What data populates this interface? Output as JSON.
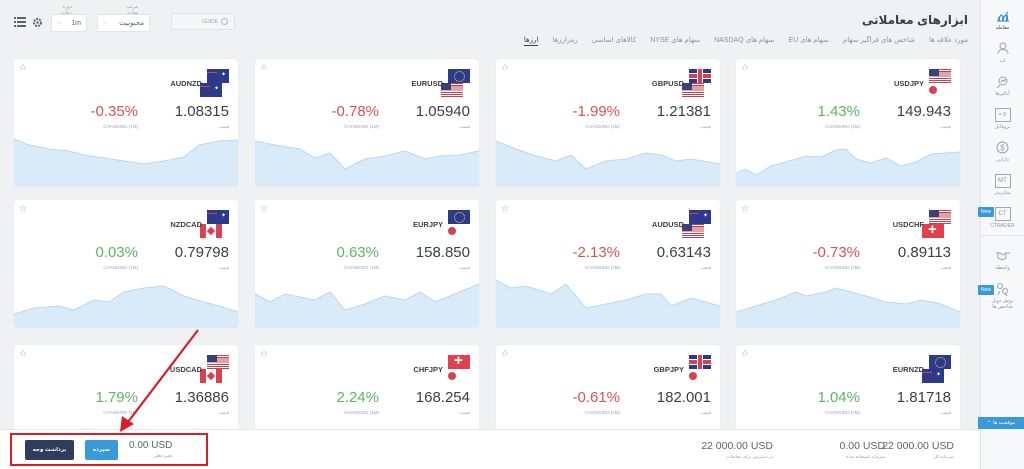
{
  "header": {
    "title": "ابزارهای معاملاتی",
    "tabs": [
      "ارزها",
      "رمزارزها",
      "کالاهای اساسی",
      "سهام های NYSE",
      "سهام های NASDAQ",
      "سهام های EU",
      "شاخص های فراگیر سهام",
      "مورد علاقه ها"
    ],
    "active_tab": 0
  },
  "controls": {
    "sort_label": "مرتب سازی",
    "sort_value": "محبوبیت",
    "timeframe_label": "دوره زمانی",
    "timeframe_value": "1m",
    "guide_label": "GUIDE",
    "settings_icon": "gear-icon",
    "list_icon": "list-icon"
  },
  "sidebar": {
    "items": [
      {
        "label": "معامله",
        "icon": "chart-icon",
        "active": true
      },
      {
        "label": "اپ",
        "icon": "user-icon"
      },
      {
        "label": "آنالیزها",
        "icon": "analysis-icon"
      },
      {
        "label": "پروفایل",
        "icon": "profile-card-icon"
      },
      {
        "label": "دارایی",
        "icon": "dollar-icon"
      },
      {
        "label": "متاتریدر",
        "icon": "mt-icon",
        "box": "MT"
      },
      {
        "label": "CTRADER",
        "icon": "ct-icon",
        "box": "CT",
        "badge": "New"
      },
      {
        "label": "واسطه",
        "icon": "handshake-icon"
      },
      {
        "label": "روش دوبل شاخص ها",
        "icon": "copy-trade-icon",
        "badge": "New"
      }
    ]
  },
  "cards": [
    {
      "symbol": "USDJPY",
      "flags": [
        "us",
        "jp"
      ],
      "price": "149.943",
      "price_label": "قیمت",
      "change": "1.43%",
      "dir": "up",
      "change_label": "CHANGING (1M)"
    },
    {
      "symbol": "GBPUSD",
      "flags": [
        "gb",
        "us"
      ],
      "price": "1.21381",
      "price_label": "قیمت",
      "change": "-1.99%",
      "dir": "down",
      "change_label": "CHANGING (1M)"
    },
    {
      "symbol": "EURUSD",
      "flags": [
        "eu",
        "us"
      ],
      "price": "1.05940",
      "price_label": "قیمت",
      "change": "-0.78%",
      "dir": "down",
      "change_label": "CHANGING (1M)"
    },
    {
      "symbol": "AUDNZD",
      "flags": [
        "au",
        "nz"
      ],
      "price": "1.08315",
      "price_label": "قیمت",
      "change": "-0.35%",
      "dir": "down",
      "change_label": "CHANGING (1M)"
    },
    {
      "symbol": "USDCHF",
      "flags": [
        "us",
        "ch"
      ],
      "price": "0.89113",
      "price_label": "قیمت",
      "change": "-0.73%",
      "dir": "down",
      "change_label": "CHANGING (1M)"
    },
    {
      "symbol": "AUDUSD",
      "flags": [
        "au",
        "us"
      ],
      "price": "0.63143",
      "price_label": "قیمت",
      "change": "-2.13%",
      "dir": "down",
      "change_label": "CHANGING (1M)"
    },
    {
      "symbol": "EURJPY",
      "flags": [
        "eu",
        "jp"
      ],
      "price": "158.850",
      "price_label": "قیمت",
      "change": "0.63%",
      "dir": "up",
      "change_label": "CHANGING (1M)"
    },
    {
      "symbol": "NZDCAD",
      "flags": [
        "nz",
        "ca"
      ],
      "price": "0.79798",
      "price_label": "قیمت",
      "change": "0.03%",
      "dir": "up",
      "change_label": "CHANGING (1M)"
    },
    {
      "symbol": "EURNZD",
      "flags": [
        "eu",
        "nz"
      ],
      "price": "1.81718",
      "price_label": "قیمت",
      "change": "1.04%",
      "dir": "up",
      "change_label": "CHANGING (1M)"
    },
    {
      "symbol": "GBPJPY",
      "flags": [
        "gb",
        "jp"
      ],
      "price": "182.001",
      "price_label": "قیمت",
      "change": "-0.61%",
      "dir": "down",
      "change_label": "CHANGING (1M)"
    },
    {
      "symbol": "CHFJPY",
      "flags": [
        "ch",
        "jp"
      ],
      "price": "168.254",
      "price_label": "قیمت",
      "change": "2.24%",
      "dir": "up",
      "change_label": "CHANGING (1M)"
    },
    {
      "symbol": "USDCAD",
      "flags": [
        "us",
        "ca"
      ],
      "price": "1.36886",
      "price_label": "قیمت",
      "change": "1.79%",
      "dir": "up",
      "change_label": "CHANGING (1M)"
    }
  ],
  "footer": {
    "positions_tab": "موقعیت ها",
    "stats": [
      {
        "value": "22 000.00 USD",
        "label": "سرمایه کل"
      },
      {
        "value": "0.00 USD",
        "label": "سرمایه استفاده شده"
      },
      {
        "value": "22 000.00 USD",
        "label": "در دسترس برای معاملات"
      }
    ],
    "balance_value": "0.00 USD",
    "balance_label": "تغییر فعلی",
    "deposit_label": "سپرده",
    "withdraw_label": "برداشت وجه"
  },
  "colors": {
    "accent": "#3a9ad9",
    "up": "#5cb85c",
    "down": "#d9534f",
    "highlight": "#d61f26",
    "dark_button": "#2f3d5c"
  }
}
